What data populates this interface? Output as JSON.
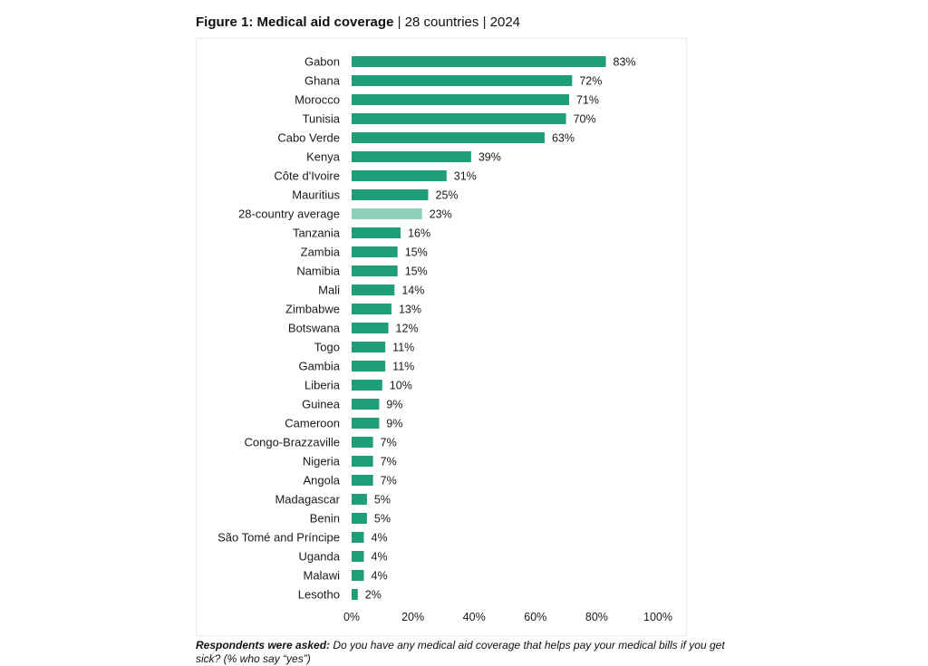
{
  "header": {
    "title_bold": "Figure 1: Medical aid coverage",
    "sep1": "|",
    "subtitle1": "28 countries",
    "sep2": "|",
    "subtitle2": "2024"
  },
  "footnote": {
    "label": "Respondents were asked:",
    "text": "Do you have any medical aid coverage that helps pay your medical bills if you get sick? (% who say “yes”)"
  },
  "colors": {
    "bar": "#1f9e7a",
    "average_bar": "#8fd0bc"
  },
  "chart_data": {
    "type": "bar",
    "orientation": "horizontal",
    "categories": [
      "Gabon",
      "Ghana",
      "Morocco",
      "Tunisia",
      "Cabo Verde",
      "Kenya",
      "Côte d'Ivoire",
      "Mauritius",
      "28-country average",
      "Tanzania",
      "Zambia",
      "Namibia",
      "Mali",
      "Zimbabwe",
      "Botswana",
      "Togo",
      "Gambia",
      "Liberia",
      "Guinea",
      "Cameroon",
      "Congo-Brazzaville",
      "Nigeria",
      "Angola",
      "Madagascar",
      "Benin",
      "São Tomé and Príncipe",
      "Uganda",
      "Malawi",
      "Lesotho"
    ],
    "values": [
      83,
      72,
      71,
      70,
      63,
      39,
      31,
      25,
      23,
      16,
      15,
      15,
      14,
      13,
      12,
      11,
      11,
      10,
      9,
      9,
      7,
      7,
      7,
      5,
      5,
      4,
      4,
      4,
      2
    ],
    "highlight": "28-country average",
    "value_suffix": "%",
    "xlim": [
      0,
      100
    ],
    "xticks": [
      0,
      20,
      40,
      60,
      80,
      100
    ],
    "grid": false,
    "legend": "none"
  }
}
